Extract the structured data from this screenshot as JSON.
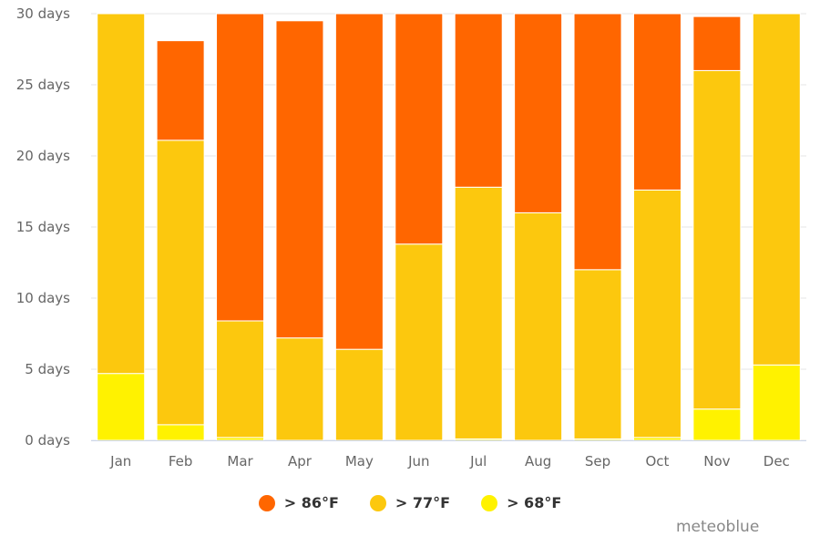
{
  "chart_data": {
    "type": "bar",
    "stacked": true,
    "categories": [
      "Jan",
      "Feb",
      "Mar",
      "Apr",
      "May",
      "Jun",
      "Jul",
      "Aug",
      "Sep",
      "Oct",
      "Nov",
      "Dec"
    ],
    "series": [
      {
        "name": "> 68°F",
        "color": "#fff200",
        "values": [
          4.7,
          1.1,
          0.2,
          0,
          0,
          0,
          0.1,
          0,
          0.1,
          0.2,
          2.2,
          5.3
        ]
      },
      {
        "name": "> 77°F",
        "color": "#fcc80e",
        "values": [
          25.3,
          20.0,
          8.2,
          7.2,
          6.4,
          13.8,
          17.7,
          16.0,
          11.9,
          17.4,
          23.8,
          24.7
        ]
      },
      {
        "name": "> 86°F",
        "color": "#ff6600",
        "values": [
          0,
          7.0,
          21.6,
          22.3,
          23.6,
          16.2,
          12.2,
          14.0,
          18.0,
          12.4,
          3.8,
          0
        ]
      }
    ],
    "legend_order": [
      "> 86°F",
      "> 77°F",
      "> 68°F"
    ],
    "yticks": [
      "0 days",
      "5 days",
      "10 days",
      "15 days",
      "20 days",
      "25 days",
      "30 days"
    ],
    "ytick_values": [
      0,
      5,
      10,
      15,
      20,
      25,
      30
    ],
    "ylim": [
      0,
      30
    ],
    "grid": true,
    "legend_position": "bottom-center",
    "credit": "meteoblue"
  }
}
